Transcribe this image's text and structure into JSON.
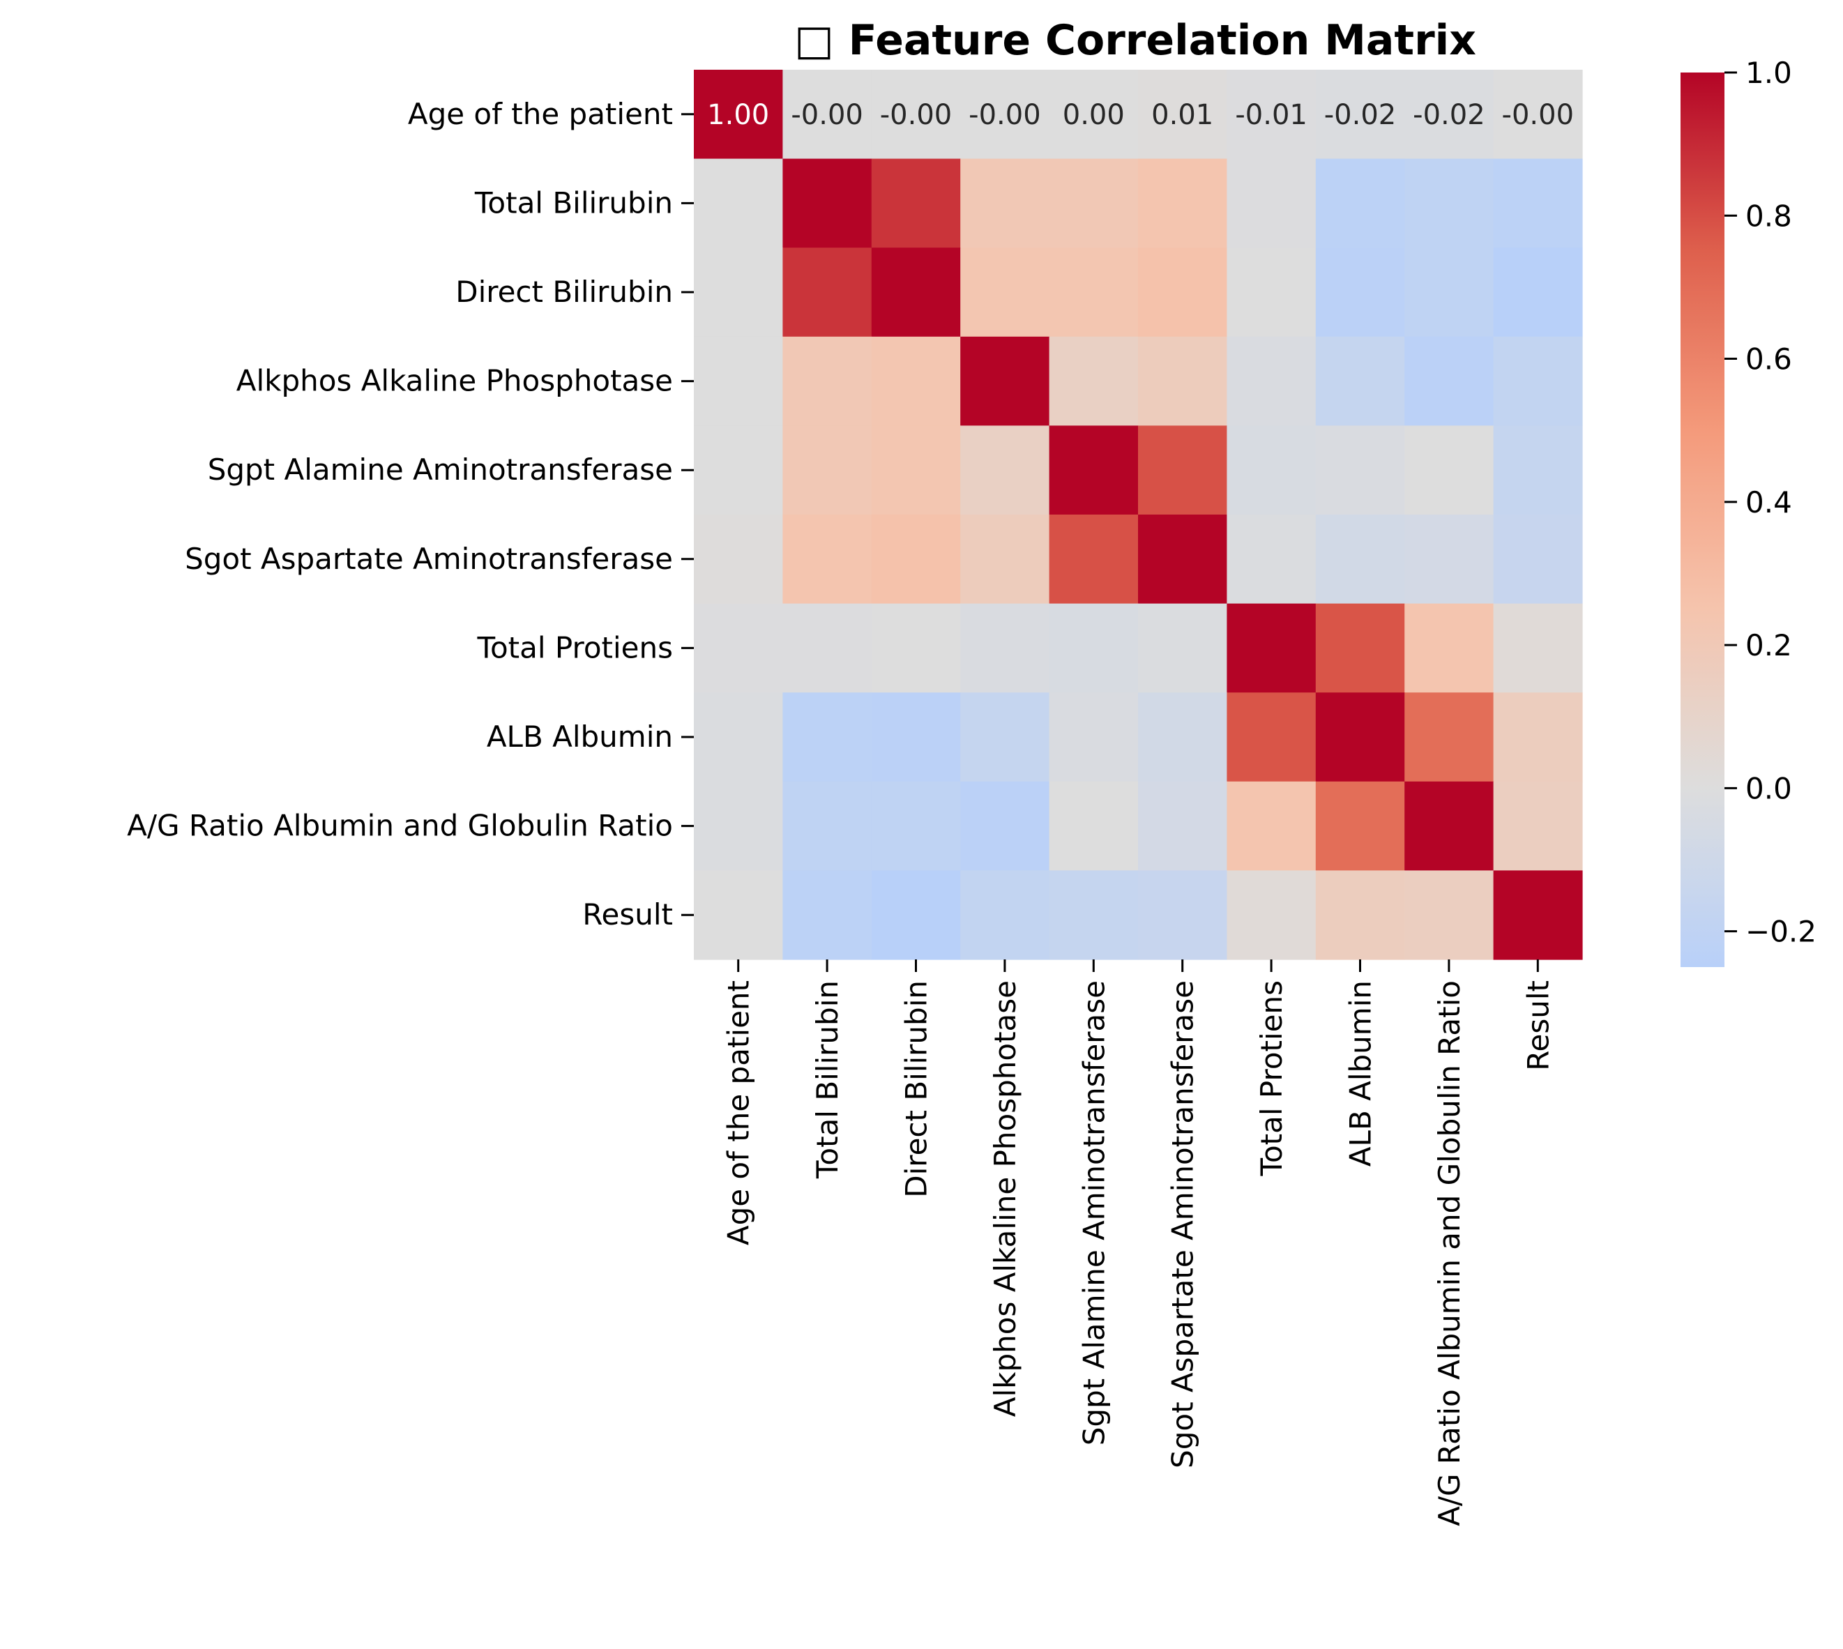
{
  "chart_data": {
    "type": "heatmap",
    "title": "□ Feature Correlation Matrix",
    "labels": [
      "Age of the patient",
      "Total Bilirubin",
      "Direct Bilirubin",
      "Alkphos Alkaline Phosphotase",
      "Sgpt Alamine Aminotransferase",
      "Sgot Aspartate Aminotransferase",
      "Total Protiens",
      "ALB Albumin",
      "A/G Ratio Albumin and Globulin Ratio",
      "Result"
    ],
    "matrix": [
      [
        1.0,
        -0.0,
        -0.0,
        -0.0,
        0.0,
        0.01,
        -0.01,
        -0.02,
        -0.02,
        -0.0
      ],
      [
        -0.0,
        1.0,
        0.87,
        0.21,
        0.21,
        0.24,
        -0.01,
        -0.22,
        -0.2,
        -0.22
      ],
      [
        -0.0,
        0.87,
        1.0,
        0.23,
        0.23,
        0.26,
        0.0,
        -0.23,
        -0.2,
        -0.25
      ],
      [
        -0.0,
        0.21,
        0.23,
        1.0,
        0.13,
        0.17,
        -0.03,
        -0.16,
        -0.23,
        -0.18
      ],
      [
        0.0,
        0.21,
        0.23,
        0.13,
        1.0,
        0.79,
        -0.04,
        -0.03,
        -0.0,
        -0.16
      ],
      [
        0.01,
        0.24,
        0.26,
        0.17,
        0.79,
        1.0,
        -0.02,
        -0.08,
        -0.07,
        -0.15
      ],
      [
        -0.01,
        -0.01,
        0.0,
        -0.03,
        -0.04,
        -0.02,
        1.0,
        0.78,
        0.24,
        0.03
      ],
      [
        -0.02,
        -0.22,
        -0.23,
        -0.16,
        -0.03,
        -0.08,
        0.78,
        1.0,
        0.69,
        0.16
      ],
      [
        -0.02,
        -0.2,
        -0.2,
        -0.23,
        -0.0,
        -0.07,
        0.24,
        0.69,
        1.0,
        0.15
      ],
      [
        -0.0,
        -0.22,
        -0.25,
        -0.18,
        -0.16,
        -0.15,
        0.03,
        0.16,
        0.15,
        1.0
      ]
    ],
    "annotated_row": 0,
    "annotations": [
      "1.00",
      "-0.00",
      "-0.00",
      "-0.00",
      "0.00",
      "0.01",
      "-0.01",
      "-0.02",
      "-0.02",
      "-0.00"
    ],
    "colormap": "coolwarm",
    "colorbar": {
      "vmin": -0.25,
      "vmax": 1.0,
      "ticks": [
        1.0,
        0.8,
        0.6,
        0.4,
        0.2,
        0.0,
        -0.2
      ],
      "tick_labels": [
        "1.0",
        "0.8",
        "0.6",
        "0.4",
        "0.2",
        "0.0",
        "−0.2"
      ]
    },
    "grid": false
  }
}
